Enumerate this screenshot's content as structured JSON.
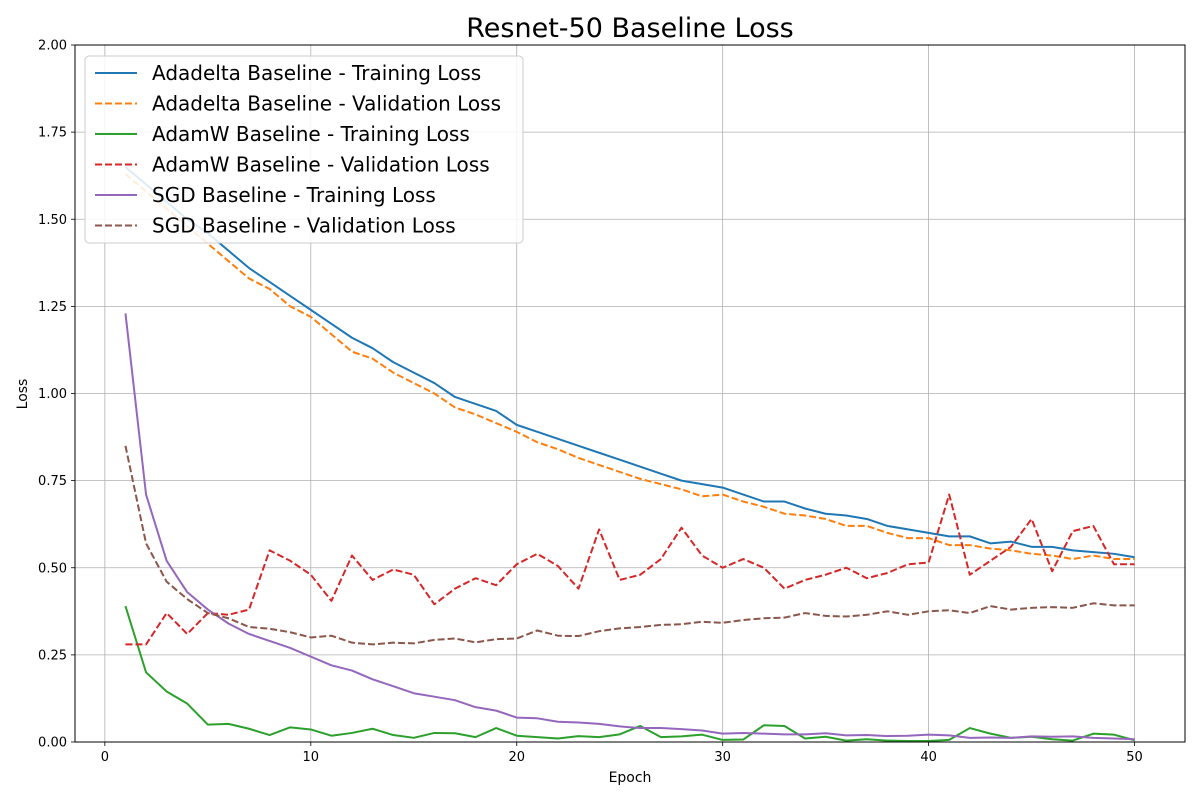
{
  "chart_data": {
    "type": "line",
    "title": "Resnet-50 Baseline Loss",
    "xlabel": "Epoch",
    "ylabel": "Loss",
    "xlim": [
      -1.45,
      52.45
    ],
    "ylim": [
      0,
      2.0
    ],
    "xticks": [
      0,
      10,
      20,
      30,
      40,
      50
    ],
    "yticks": [
      0,
      0.25,
      0.5,
      0.75,
      1.0,
      1.25,
      1.5,
      1.75,
      2.0
    ],
    "xtick_labels": [
      "0",
      "10",
      "20",
      "30",
      "40",
      "50"
    ],
    "ytick_labels": [
      "0.00",
      "0.25",
      "0.50",
      "0.75",
      "1.00",
      "1.25",
      "1.50",
      "1.75",
      "2.00"
    ],
    "grid": true,
    "legend_position": "upper-left",
    "x": [
      1,
      2,
      3,
      4,
      5,
      6,
      7,
      8,
      9,
      10,
      11,
      12,
      13,
      14,
      15,
      16,
      17,
      18,
      19,
      20,
      21,
      22,
      23,
      24,
      25,
      26,
      27,
      28,
      29,
      30,
      31,
      32,
      33,
      34,
      35,
      36,
      37,
      38,
      39,
      40,
      41,
      42,
      43,
      44,
      45,
      46,
      47,
      48,
      49,
      50
    ],
    "series": [
      {
        "name": "Adadelta Baseline - Training Loss",
        "color": "#1f77b4",
        "dash": "solid",
        "values": [
          1.65,
          1.6,
          1.55,
          1.5,
          1.46,
          1.41,
          1.36,
          1.32,
          1.28,
          1.24,
          1.2,
          1.16,
          1.13,
          1.09,
          1.06,
          1.03,
          0.99,
          0.97,
          0.95,
          0.91,
          0.89,
          0.87,
          0.85,
          0.83,
          0.81,
          0.79,
          0.77,
          0.75,
          0.74,
          0.73,
          0.71,
          0.69,
          0.69,
          0.67,
          0.655,
          0.65,
          0.64,
          0.62,
          0.61,
          0.6,
          0.59,
          0.59,
          0.57,
          0.575,
          0.56,
          0.56,
          0.55,
          0.545,
          0.54,
          0.53
        ]
      },
      {
        "name": "Adadelta Baseline - Validation Loss",
        "color": "#ff7f0e",
        "dash": "dashed",
        "values": [
          1.63,
          1.58,
          1.53,
          1.48,
          1.43,
          1.38,
          1.33,
          1.3,
          1.25,
          1.22,
          1.17,
          1.12,
          1.1,
          1.06,
          1.03,
          1.0,
          0.96,
          0.94,
          0.915,
          0.89,
          0.86,
          0.84,
          0.815,
          0.795,
          0.775,
          0.755,
          0.74,
          0.725,
          0.705,
          0.71,
          0.69,
          0.675,
          0.655,
          0.65,
          0.64,
          0.62,
          0.62,
          0.6,
          0.585,
          0.585,
          0.565,
          0.565,
          0.555,
          0.55,
          0.54,
          0.535,
          0.525,
          0.535,
          0.525,
          0.525
        ]
      },
      {
        "name": "AdamW Baseline - Training Loss",
        "color": "#2ca02c",
        "dash": "solid",
        "values": [
          0.39,
          0.2,
          0.145,
          0.11,
          0.05,
          0.052,
          0.038,
          0.02,
          0.042,
          0.036,
          0.018,
          0.026,
          0.038,
          0.02,
          0.012,
          0.026,
          0.025,
          0.014,
          0.04,
          0.018,
          0.014,
          0.01,
          0.017,
          0.014,
          0.022,
          0.046,
          0.014,
          0.016,
          0.021,
          0.006,
          0.007,
          0.048,
          0.046,
          0.01,
          0.015,
          0.004,
          0.008,
          0.004,
          0.003,
          0.003,
          0.006,
          0.04,
          0.024,
          0.012,
          0.015,
          0.008,
          0.004,
          0.024,
          0.021,
          0.005
        ]
      },
      {
        "name": "AdamW Baseline - Validation Loss",
        "color": "#d62728",
        "dash": "dashed",
        "values": [
          0.28,
          0.28,
          0.37,
          0.31,
          0.37,
          0.365,
          0.38,
          0.55,
          0.52,
          0.48,
          0.405,
          0.535,
          0.465,
          0.495,
          0.48,
          0.395,
          0.44,
          0.47,
          0.45,
          0.51,
          0.54,
          0.505,
          0.44,
          0.61,
          0.465,
          0.48,
          0.525,
          0.615,
          0.535,
          0.5,
          0.525,
          0.5,
          0.44,
          0.465,
          0.48,
          0.5,
          0.47,
          0.485,
          0.51,
          0.515,
          0.71,
          0.48,
          0.52,
          0.56,
          0.64,
          0.49,
          0.605,
          0.62,
          0.51,
          0.51
        ]
      },
      {
        "name": "SGD Baseline - Training Loss",
        "color": "#9467bd",
        "dash": "solid",
        "values": [
          1.23,
          0.71,
          0.52,
          0.43,
          0.38,
          0.34,
          0.31,
          0.29,
          0.27,
          0.245,
          0.22,
          0.205,
          0.18,
          0.16,
          0.14,
          0.13,
          0.12,
          0.1,
          0.09,
          0.07,
          0.068,
          0.058,
          0.056,
          0.052,
          0.045,
          0.04,
          0.04,
          0.037,
          0.033,
          0.024,
          0.026,
          0.024,
          0.022,
          0.022,
          0.025,
          0.019,
          0.02,
          0.017,
          0.018,
          0.021,
          0.019,
          0.012,
          0.013,
          0.012,
          0.016,
          0.015,
          0.016,
          0.012,
          0.01,
          0.008
        ]
      },
      {
        "name": "SGD Baseline - Validation Loss",
        "color": "#8c564b",
        "dash": "dashed",
        "values": [
          0.85,
          0.57,
          0.46,
          0.41,
          0.37,
          0.355,
          0.33,
          0.325,
          0.315,
          0.3,
          0.305,
          0.285,
          0.28,
          0.285,
          0.283,
          0.293,
          0.297,
          0.286,
          0.295,
          0.297,
          0.32,
          0.305,
          0.304,
          0.318,
          0.326,
          0.33,
          0.336,
          0.338,
          0.345,
          0.342,
          0.35,
          0.355,
          0.357,
          0.37,
          0.362,
          0.36,
          0.365,
          0.375,
          0.365,
          0.375,
          0.378,
          0.37,
          0.39,
          0.38,
          0.385,
          0.387,
          0.385,
          0.398,
          0.392,
          0.392
        ]
      }
    ]
  }
}
